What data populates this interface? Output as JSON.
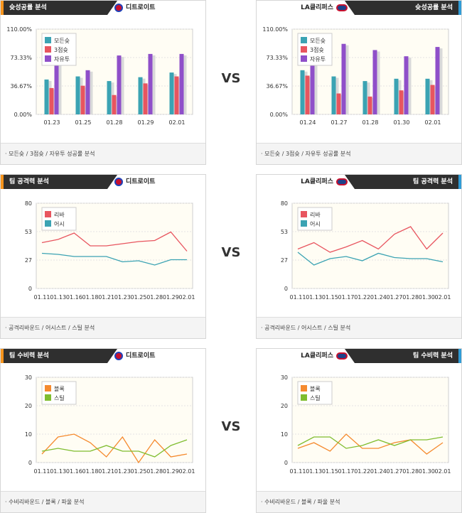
{
  "vs_label": "VS",
  "sections": [
    {
      "id": "shooting",
      "left": {
        "tab": "슛성공률 분석",
        "team": "디트로이트",
        "footer": "모든슛 / 3점슛 / 자유투 성공률 분석",
        "chart_data": {
          "type": "bar",
          "categories": [
            "01.23",
            "01.25",
            "01.28",
            "01.29",
            "02.01"
          ],
          "ylim": [
            0,
            110
          ],
          "yticks": [
            "0.00%",
            "36.67%",
            "73.33%",
            "110.00%"
          ],
          "series": [
            {
              "name": "모든슛",
              "color": "#3ba3b3",
              "values": [
                45,
                49,
                43,
                48,
                54
              ]
            },
            {
              "name": "3점슛",
              "color": "#e8555f",
              "values": [
                34,
                37,
                25,
                40,
                49
              ]
            },
            {
              "name": "자유투",
              "color": "#8f4fc9",
              "values": [
                86,
                57,
                76,
                78,
                78
              ]
            }
          ]
        }
      },
      "right": {
        "tab": "슛성공률 분석",
        "team": "LA클리퍼스",
        "footer": "모든슛 / 3점슛 / 자유투 성공률 분석",
        "chart_data": {
          "type": "bar",
          "categories": [
            "01.24",
            "01.27",
            "01.28",
            "01.30",
            "02.01"
          ],
          "ylim": [
            0,
            110
          ],
          "yticks": [
            "0.00%",
            "36.67%",
            "73.33%",
            "110.00%"
          ],
          "series": [
            {
              "name": "모든슛",
              "color": "#3ba3b3",
              "values": [
                57,
                49,
                43,
                46,
                46
              ]
            },
            {
              "name": "3점슛",
              "color": "#e8555f",
              "values": [
                50,
                27,
                23,
                31,
                38
              ]
            },
            {
              "name": "자유투",
              "color": "#8f4fc9",
              "values": [
                78,
                91,
                83,
                75,
                87
              ]
            }
          ]
        }
      }
    },
    {
      "id": "offense",
      "left": {
        "tab": "팀 공격력 분석",
        "team": "디트로이트",
        "footer": "공격리바운드 / 어시스트 / 스틸 분석",
        "chart_data": {
          "type": "line",
          "categories": [
            "01.11",
            "01.13",
            "01.16",
            "01.18",
            "01.21",
            "01.23",
            "01.25",
            "01.28",
            "01.29",
            "02.01"
          ],
          "ylim": [
            0,
            80
          ],
          "yticks": [
            "0",
            "27",
            "53",
            "80"
          ],
          "series": [
            {
              "name": "리바",
              "color": "#e8555f",
              "values": [
                43,
                46,
                52,
                40,
                40,
                42,
                44,
                45,
                53,
                35
              ]
            },
            {
              "name": "어시",
              "color": "#3ba3b3",
              "values": [
                33,
                32,
                30,
                30,
                30,
                25,
                26,
                22,
                27,
                27
              ]
            }
          ]
        }
      },
      "right": {
        "tab": "팀 공격력 분석",
        "team": "LA클리퍼스",
        "footer": "공격리바운드 / 어시스트 / 스틸 분석",
        "chart_data": {
          "type": "line",
          "categories": [
            "01.11",
            "01.13",
            "01.15",
            "01.17",
            "01.22",
            "01.24",
            "01.27",
            "01.28",
            "01.30",
            "02.01"
          ],
          "ylim": [
            0,
            80
          ],
          "yticks": [
            "0",
            "27",
            "53",
            "80"
          ],
          "series": [
            {
              "name": "리바",
              "color": "#e8555f",
              "values": [
                37,
                43,
                34,
                39,
                45,
                37,
                51,
                58,
                37,
                52
              ]
            },
            {
              "name": "어시",
              "color": "#3ba3b3",
              "values": [
                34,
                22,
                28,
                30,
                26,
                33,
                29,
                28,
                28,
                25
              ]
            }
          ]
        }
      }
    },
    {
      "id": "defense",
      "left": {
        "tab": "팀 수비력 분석",
        "team": "디트로이트",
        "footer": "수비리바운드 / 블록 / 파울 분석",
        "chart_data": {
          "type": "line",
          "categories": [
            "01.11",
            "01.13",
            "01.16",
            "01.18",
            "01.21",
            "01.23",
            "01.25",
            "01.28",
            "01.29",
            "02.01"
          ],
          "ylim": [
            0,
            30
          ],
          "yticks": [
            "0",
            "10",
            "20",
            "30"
          ],
          "series": [
            {
              "name": "블록",
              "color": "#f58a2e",
              "values": [
                3,
                9,
                10,
                7,
                2,
                9,
                0,
                8,
                2,
                3
              ]
            },
            {
              "name": "스틸",
              "color": "#7fbd2f",
              "values": [
                4,
                5,
                4,
                4,
                6,
                4,
                4,
                2,
                6,
                8
              ]
            }
          ]
        }
      },
      "right": {
        "tab": "팀 수비력 분석",
        "team": "LA클리퍼스",
        "footer": "수비리바운드 / 블록 / 파울 분석",
        "chart_data": {
          "type": "line",
          "categories": [
            "01.11",
            "01.13",
            "01.15",
            "01.17",
            "01.22",
            "01.24",
            "01.27",
            "01.28",
            "01.30",
            "02.01"
          ],
          "ylim": [
            0,
            30
          ],
          "yticks": [
            "0",
            "10",
            "20",
            "30"
          ],
          "series": [
            {
              "name": "블록",
              "color": "#f58a2e",
              "values": [
                5,
                7,
                4,
                10,
                5,
                5,
                7,
                8,
                3,
                7
              ]
            },
            {
              "name": "스틸",
              "color": "#7fbd2f",
              "values": [
                6,
                9,
                9,
                5,
                6,
                8,
                6,
                8,
                8,
                9
              ]
            }
          ]
        }
      }
    }
  ]
}
